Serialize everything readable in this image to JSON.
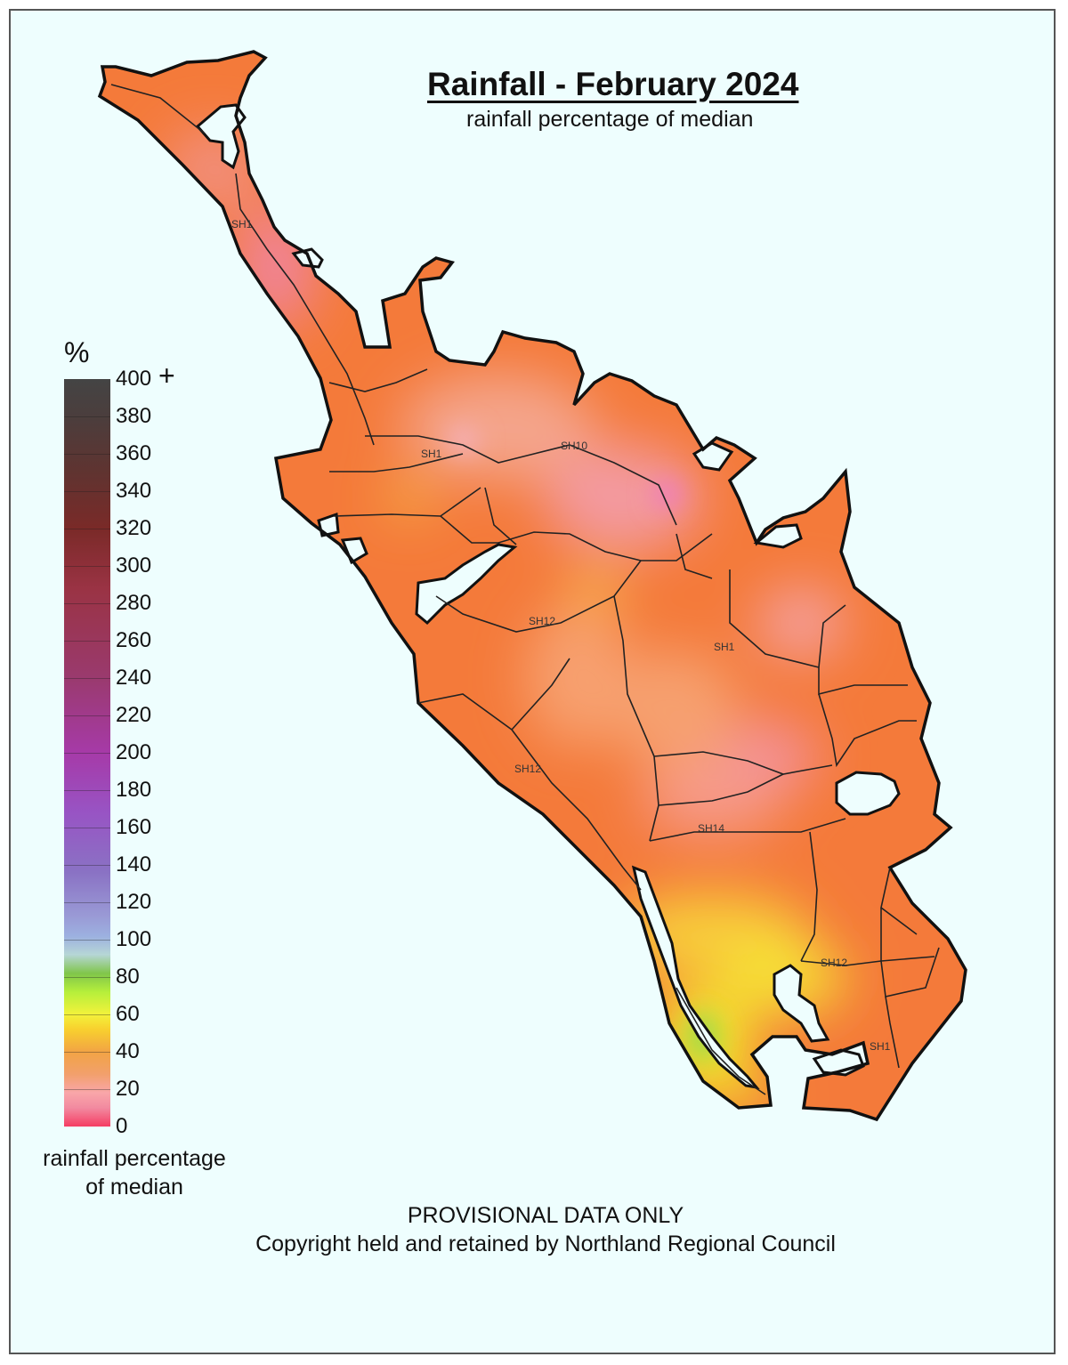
{
  "title": "Rainfall - February 2024",
  "subtitle": "rainfall percentage of median",
  "legend": {
    "unit": "%",
    "plus": "+",
    "ticks": [
      "400",
      "380",
      "360",
      "340",
      "320",
      "300",
      "280",
      "260",
      "240",
      "220",
      "200",
      "180",
      "160",
      "140",
      "120",
      "100",
      "80",
      "60",
      "40",
      "20",
      "0"
    ],
    "caption_line1": "rainfall percentage",
    "caption_line2": "of median"
  },
  "road_labels": [
    "SH1",
    "SH1",
    "SH10",
    "SH12",
    "SH1",
    "SH12",
    "SH14",
    "SH12",
    "SH1"
  ],
  "notice_line1": "PROVISIONAL DATA ONLY",
  "notice_line2": "Copyright held and retained by Northland Regional Council",
  "colors": {
    "land_base": "#f47a3a",
    "low_pink": "#f2909a",
    "yellow": "#f3e82b",
    "green": "#9ed94a",
    "background": "#eefefe"
  }
}
